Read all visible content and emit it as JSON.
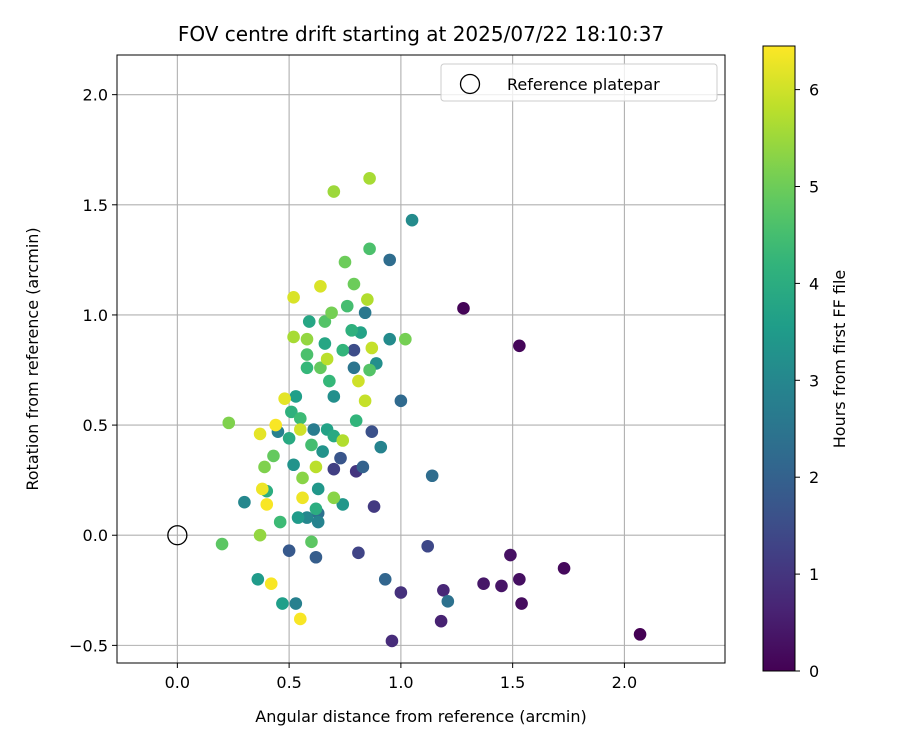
{
  "chart_data": {
    "type": "scatter",
    "title": "FOV centre drift starting at 2025/07/22 18:10:37",
    "xlabel": "Angular distance from reference (arcmin)",
    "ylabel": "Rotation from reference (arcmin)",
    "xlim": [
      -0.27,
      2.45
    ],
    "ylim": [
      -0.58,
      2.18
    ],
    "x_ticks": [
      0.0,
      0.5,
      1.0,
      1.5,
      2.0
    ],
    "x_tick_labels": [
      "0.0",
      "0.5",
      "1.0",
      "1.5",
      "2.0"
    ],
    "y_ticks": [
      -0.5,
      0.0,
      0.5,
      1.0,
      1.5,
      2.0
    ],
    "y_tick_labels": [
      "−0.5",
      "0.0",
      "0.5",
      "1.0",
      "1.5",
      "2.0"
    ],
    "grid": true,
    "legend": {
      "placement": "top-right",
      "entries": [
        "Reference platepar"
      ]
    },
    "reference_point": {
      "x": 0.0,
      "y": 0.0
    },
    "colorbar": {
      "label": "Hours from first FF file",
      "range": [
        0,
        6.45
      ],
      "ticks": [
        0,
        1,
        2,
        3,
        4,
        5,
        6
      ],
      "tick_labels": [
        "0",
        "1",
        "2",
        "3",
        "4",
        "5",
        "6"
      ],
      "colormap": "viridis"
    },
    "points": [
      {
        "x": 2.07,
        "y": -0.45,
        "h": 0.0
      },
      {
        "x": 1.28,
        "y": 1.03,
        "h": 0.05
      },
      {
        "x": 1.53,
        "y": 0.86,
        "h": 0.1
      },
      {
        "x": 1.73,
        "y": -0.15,
        "h": 0.15
      },
      {
        "x": 1.54,
        "y": -0.31,
        "h": 0.2
      },
      {
        "x": 1.53,
        "y": -0.2,
        "h": 0.25
      },
      {
        "x": 1.49,
        "y": -0.09,
        "h": 0.3
      },
      {
        "x": 1.45,
        "y": -0.23,
        "h": 0.35
      },
      {
        "x": 1.37,
        "y": -0.22,
        "h": 0.4
      },
      {
        "x": 1.18,
        "y": -0.39,
        "h": 0.6
      },
      {
        "x": 1.19,
        "y": -0.25,
        "h": 0.7
      },
      {
        "x": 0.96,
        "y": -0.48,
        "h": 0.8
      },
      {
        "x": 1.0,
        "y": -0.26,
        "h": 0.9
      },
      {
        "x": 0.8,
        "y": 0.29,
        "h": 1.0
      },
      {
        "x": 0.88,
        "y": 0.13,
        "h": 1.1
      },
      {
        "x": 0.7,
        "y": 0.3,
        "h": 1.2
      },
      {
        "x": 0.81,
        "y": -0.08,
        "h": 1.3
      },
      {
        "x": 1.12,
        "y": -0.05,
        "h": 1.4
      },
      {
        "x": 0.79,
        "y": 0.84,
        "h": 1.5
      },
      {
        "x": 0.87,
        "y": 0.47,
        "h": 1.6
      },
      {
        "x": 0.73,
        "y": 0.35,
        "h": 1.7
      },
      {
        "x": 0.5,
        "y": -0.07,
        "h": 1.8
      },
      {
        "x": 0.62,
        "y": -0.1,
        "h": 1.9
      },
      {
        "x": 0.83,
        "y": 0.31,
        "h": 2.0
      },
      {
        "x": 0.93,
        "y": -0.2,
        "h": 2.1
      },
      {
        "x": 1.0,
        "y": 0.61,
        "h": 2.2
      },
      {
        "x": 0.95,
        "y": 1.25,
        "h": 2.3
      },
      {
        "x": 0.63,
        "y": 0.1,
        "h": 2.4
      },
      {
        "x": 0.79,
        "y": 0.76,
        "h": 2.5
      },
      {
        "x": 0.84,
        "y": 1.01,
        "h": 2.6
      },
      {
        "x": 0.61,
        "y": 0.48,
        "h": 2.7
      },
      {
        "x": 0.53,
        "y": -0.31,
        "h": 2.8
      },
      {
        "x": 0.91,
        "y": 0.4,
        "h": 2.9
      },
      {
        "x": 1.14,
        "y": 0.27,
        "h": 2.3
      },
      {
        "x": 1.21,
        "y": -0.3,
        "h": 2.4
      },
      {
        "x": 0.45,
        "y": 0.47,
        "h": 2.8
      },
      {
        "x": 0.63,
        "y": 0.06,
        "h": 2.9
      },
      {
        "x": 0.58,
        "y": 0.08,
        "h": 3.0
      },
      {
        "x": 0.3,
        "y": 0.15,
        "h": 3.0
      },
      {
        "x": 1.05,
        "y": 1.43,
        "h": 3.1
      },
      {
        "x": 0.95,
        "y": 0.89,
        "h": 3.1
      },
      {
        "x": 0.89,
        "y": 0.78,
        "h": 3.2
      },
      {
        "x": 0.7,
        "y": 0.63,
        "h": 3.2
      },
      {
        "x": 0.65,
        "y": 0.38,
        "h": 3.3
      },
      {
        "x": 0.52,
        "y": 0.32,
        "h": 3.3
      },
      {
        "x": 0.63,
        "y": 0.21,
        "h": 3.4
      },
      {
        "x": 0.74,
        "y": 0.14,
        "h": 3.4
      },
      {
        "x": 0.54,
        "y": 0.08,
        "h": 3.5
      },
      {
        "x": 0.36,
        "y": -0.2,
        "h": 3.5
      },
      {
        "x": 0.47,
        "y": -0.31,
        "h": 3.6
      },
      {
        "x": 0.53,
        "y": 0.63,
        "h": 3.6
      },
      {
        "x": 0.67,
        "y": 0.48,
        "h": 3.7
      },
      {
        "x": 0.82,
        "y": 0.92,
        "h": 3.7
      },
      {
        "x": 0.59,
        "y": 0.97,
        "h": 3.8
      },
      {
        "x": 0.66,
        "y": 0.87,
        "h": 3.8
      },
      {
        "x": 0.7,
        "y": 0.45,
        "h": 3.9
      },
      {
        "x": 0.5,
        "y": 0.44,
        "h": 3.9
      },
      {
        "x": 0.4,
        "y": 0.2,
        "h": 4.0
      },
      {
        "x": 0.62,
        "y": 0.12,
        "h": 4.0
      },
      {
        "x": 0.51,
        "y": 0.56,
        "h": 4.1
      },
      {
        "x": 0.78,
        "y": 0.93,
        "h": 4.1
      },
      {
        "x": 0.74,
        "y": 0.84,
        "h": 4.2
      },
      {
        "x": 0.8,
        "y": 0.52,
        "h": 4.2
      },
      {
        "x": 0.58,
        "y": 0.76,
        "h": 4.3
      },
      {
        "x": 0.68,
        "y": 0.7,
        "h": 4.3
      },
      {
        "x": 0.55,
        "y": 0.53,
        "h": 4.4
      },
      {
        "x": 0.46,
        "y": 0.06,
        "h": 4.4
      },
      {
        "x": 0.6,
        "y": 0.41,
        "h": 4.5
      },
      {
        "x": 0.76,
        "y": 1.04,
        "h": 4.5
      },
      {
        "x": 0.58,
        "y": 0.82,
        "h": 4.6
      },
      {
        "x": 0.86,
        "y": 1.3,
        "h": 4.6
      },
      {
        "x": 0.66,
        "y": 0.97,
        "h": 4.7
      },
      {
        "x": 0.86,
        "y": 0.75,
        "h": 4.7
      },
      {
        "x": 0.2,
        "y": -0.04,
        "h": 4.8
      },
      {
        "x": 0.6,
        "y": -0.03,
        "h": 4.8
      },
      {
        "x": 0.43,
        "y": 0.36,
        "h": 4.9
      },
      {
        "x": 0.64,
        "y": 0.76,
        "h": 4.9
      },
      {
        "x": 0.79,
        "y": 1.14,
        "h": 5.0
      },
      {
        "x": 0.75,
        "y": 1.24,
        "h": 5.0
      },
      {
        "x": 0.69,
        "y": 1.01,
        "h": 5.1
      },
      {
        "x": 1.02,
        "y": 0.89,
        "h": 5.1
      },
      {
        "x": 0.23,
        "y": 0.51,
        "h": 5.2
      },
      {
        "x": 0.39,
        "y": 0.31,
        "h": 5.2
      },
      {
        "x": 0.56,
        "y": 0.26,
        "h": 5.3
      },
      {
        "x": 0.7,
        "y": 0.17,
        "h": 5.3
      },
      {
        "x": 0.37,
        "y": 0.0,
        "h": 5.4
      },
      {
        "x": 0.58,
        "y": 0.89,
        "h": 5.4
      },
      {
        "x": 0.7,
        "y": 1.56,
        "h": 5.5
      },
      {
        "x": 0.86,
        "y": 1.62,
        "h": 5.6
      },
      {
        "x": 0.52,
        "y": 0.9,
        "h": 5.6
      },
      {
        "x": 0.85,
        "y": 1.07,
        "h": 5.7
      },
      {
        "x": 0.74,
        "y": 0.43,
        "h": 5.7
      },
      {
        "x": 0.62,
        "y": 0.31,
        "h": 5.8
      },
      {
        "x": 0.67,
        "y": 0.8,
        "h": 5.8
      },
      {
        "x": 0.84,
        "y": 0.61,
        "h": 5.9
      },
      {
        "x": 0.87,
        "y": 0.85,
        "h": 5.9
      },
      {
        "x": 0.81,
        "y": 0.7,
        "h": 6.0
      },
      {
        "x": 0.55,
        "y": 0.48,
        "h": 6.0
      },
      {
        "x": 0.64,
        "y": 1.13,
        "h": 6.1
      },
      {
        "x": 0.52,
        "y": 1.08,
        "h": 6.1
      },
      {
        "x": 0.48,
        "y": 0.62,
        "h": 6.2
      },
      {
        "x": 0.37,
        "y": 0.46,
        "h": 6.2
      },
      {
        "x": 0.38,
        "y": 0.21,
        "h": 6.3
      },
      {
        "x": 0.56,
        "y": 0.17,
        "h": 6.3
      },
      {
        "x": 0.42,
        "y": -0.22,
        "h": 6.4
      },
      {
        "x": 0.55,
        "y": -0.38,
        "h": 6.4
      },
      {
        "x": 0.44,
        "y": 0.5,
        "h": 6.4
      },
      {
        "x": 0.4,
        "y": 0.14,
        "h": 6.4
      }
    ]
  }
}
